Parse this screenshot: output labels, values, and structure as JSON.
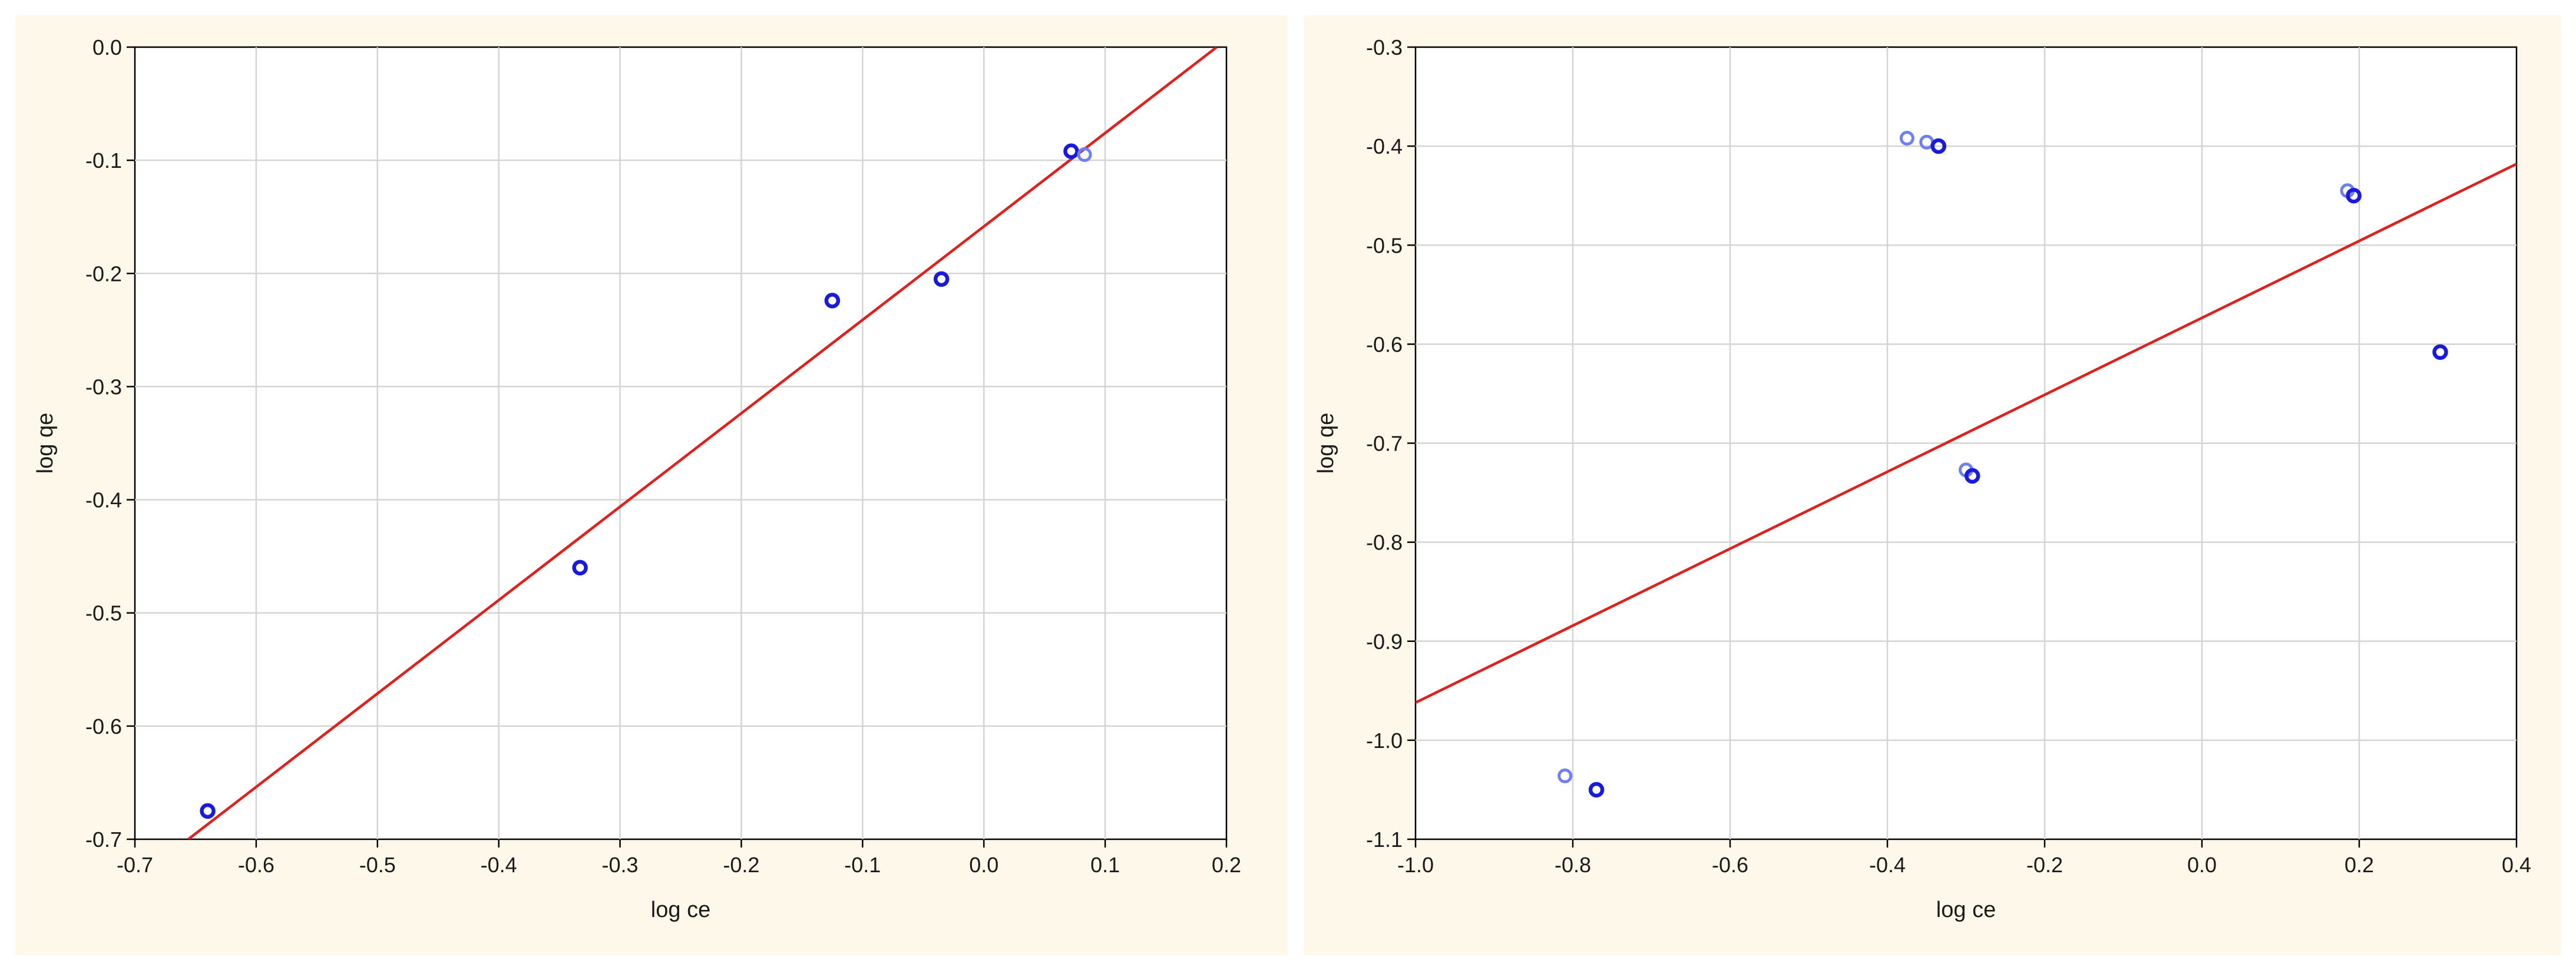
{
  "chart_data": [
    {
      "type": "scatter",
      "xlabel": "log ce",
      "ylabel": "log qe",
      "xlim": [
        -0.7,
        0.2
      ],
      "ylim": [
        -0.7,
        0.0
      ],
      "xticks": [
        -0.7,
        -0.6,
        -0.5,
        -0.4,
        -0.3,
        -0.2,
        -0.1,
        0.0,
        0.1,
        0.2
      ],
      "xtick_labels": [
        "-0.7",
        "-0.6",
        "-0.5",
        "-0.4",
        "-0.3",
        "-0.2",
        "-0.1",
        "0.0",
        "0.1",
        "0.2"
      ],
      "yticks": [
        0.0,
        -0.1,
        -0.2,
        -0.3,
        -0.4,
        -0.5,
        -0.6,
        -0.7
      ],
      "ytick_labels": [
        "0.0",
        "-0.1",
        "-0.2",
        "-0.3",
        "-0.4",
        "-0.5",
        "-0.6",
        "-0.7"
      ],
      "grid": true,
      "points": [
        {
          "x": -0.64,
          "y": -0.675,
          "style": "solid"
        },
        {
          "x": -0.333,
          "y": -0.46,
          "style": "solid"
        },
        {
          "x": -0.125,
          "y": -0.224,
          "style": "solid"
        },
        {
          "x": -0.035,
          "y": -0.205,
          "style": "solid"
        },
        {
          "x": 0.072,
          "y": -0.092,
          "style": "solid"
        },
        {
          "x": 0.083,
          "y": -0.095,
          "style": "light"
        }
      ],
      "fit_line": {
        "x": [
          -0.656,
          0.192
        ],
        "y": [
          -0.7,
          0.0
        ]
      },
      "colors": {
        "points": "#1a1adc",
        "points_light": "#6f7ef0",
        "fit_line": "#e0201c"
      }
    },
    {
      "type": "scatter",
      "xlabel": "log ce",
      "ylabel": "log qe",
      "xlim": [
        -1.0,
        0.4
      ],
      "ylim": [
        -1.1,
        -0.3
      ],
      "xticks": [
        -1.0,
        -0.8,
        -0.6,
        -0.4,
        -0.2,
        0.0,
        0.2,
        0.4
      ],
      "xtick_labels": [
        "-1.0",
        "-0.8",
        "-0.6",
        "-0.4",
        "-0.2",
        "0.0",
        "0.2",
        "0.4"
      ],
      "yticks": [
        -0.3,
        -0.4,
        -0.5,
        -0.6,
        -0.7,
        -0.8,
        -0.9,
        -1.0,
        -1.1
      ],
      "ytick_labels": [
        "-0.3",
        "-0.4",
        "-0.5",
        "-0.6",
        "-0.7",
        "-0.8",
        "-0.9",
        "-1.0",
        "-1.1"
      ],
      "grid": true,
      "points": [
        {
          "x": -0.81,
          "y": -1.036,
          "style": "light"
        },
        {
          "x": -0.77,
          "y": -1.05,
          "style": "solid"
        },
        {
          "x": -0.375,
          "y": -0.392,
          "style": "light"
        },
        {
          "x": -0.35,
          "y": -0.396,
          "style": "light"
        },
        {
          "x": -0.335,
          "y": -0.4,
          "style": "solid"
        },
        {
          "x": -0.3,
          "y": -0.727,
          "style": "light"
        },
        {
          "x": -0.292,
          "y": -0.733,
          "style": "solid"
        },
        {
          "x": 0.185,
          "y": -0.445,
          "style": "light"
        },
        {
          "x": 0.193,
          "y": -0.45,
          "style": "solid"
        },
        {
          "x": 0.303,
          "y": -0.608,
          "style": "solid"
        }
      ],
      "fit_line": {
        "x": [
          -1.0,
          0.4
        ],
        "y": [
          -0.962,
          -0.418
        ]
      },
      "colors": {
        "points": "#1a1adc",
        "points_light": "#6f7ef0",
        "fit_line": "#e0201c"
      }
    }
  ]
}
